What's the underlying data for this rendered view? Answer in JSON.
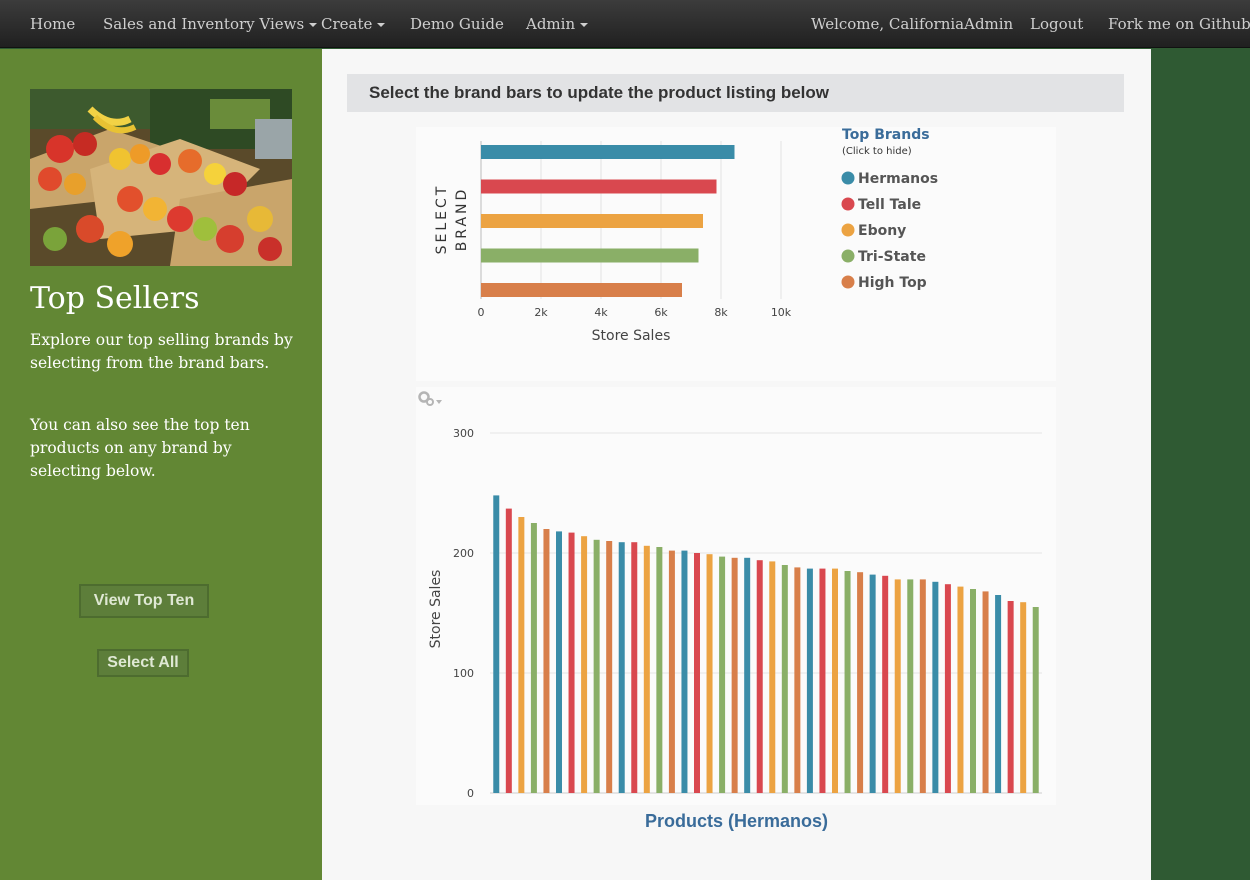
{
  "nav": {
    "home": "Home",
    "views": "Sales and Inventory Views",
    "create": "Create",
    "demo": "Demo Guide",
    "admin": "Admin",
    "welcome": "Welcome, CaliforniaAdmin",
    "logout": "Logout",
    "fork": "Fork me on Github"
  },
  "sidebar": {
    "image_alt": "produce-market-photo",
    "title": "Top Sellers",
    "text1": "Explore our top selling brands by selecting from the brand bars.",
    "text2": "You can also see the top ten products on any brand by selecting below.",
    "view_top_ten": "View Top Ten",
    "select_all": "Select All"
  },
  "main": {
    "banner": "Select the brand bars to update the product listing below",
    "products_title": "Products (Hermanos)"
  },
  "colors": {
    "Hermanos": "#3a8ca8",
    "Tell Tale": "#d9484f",
    "Ebony": "#eca342",
    "Tri-State": "#8aaf67",
    "High Top": "#d87f4a"
  },
  "chart_data": [
    {
      "type": "bar",
      "orientation": "horizontal",
      "categories": [
        "Hermanos",
        "Tell Tale",
        "Ebony",
        "Tri-State",
        "High Top"
      ],
      "values": [
        8450,
        7850,
        7400,
        7250,
        6700
      ],
      "xlabel": "Store Sales",
      "ylabel": "SELECT BRAND",
      "xlim": [
        0,
        10000
      ],
      "xticks": [
        "0",
        "2k",
        "4k",
        "6k",
        "8k",
        "10k"
      ],
      "legend": {
        "title": "Top Brands",
        "subtitle": "(Click to hide)",
        "placement": "right"
      }
    },
    {
      "type": "bar",
      "title": "Products (Hermanos)",
      "ylabel": "Store Sales",
      "ylim": [
        0,
        300
      ],
      "yticks": [
        "0",
        "100",
        "200",
        "300"
      ],
      "grid": true,
      "values": [
        248,
        237,
        230,
        225,
        220,
        218,
        217,
        214,
        211,
        210,
        209,
        209,
        206,
        205,
        202,
        202,
        200,
        199,
        197,
        196,
        196,
        194,
        193,
        190,
        188,
        187,
        187,
        187,
        185,
        184,
        182,
        181,
        178,
        178,
        178,
        176,
        174,
        172,
        170,
        168,
        165,
        160,
        159,
        155
      ]
    }
  ]
}
